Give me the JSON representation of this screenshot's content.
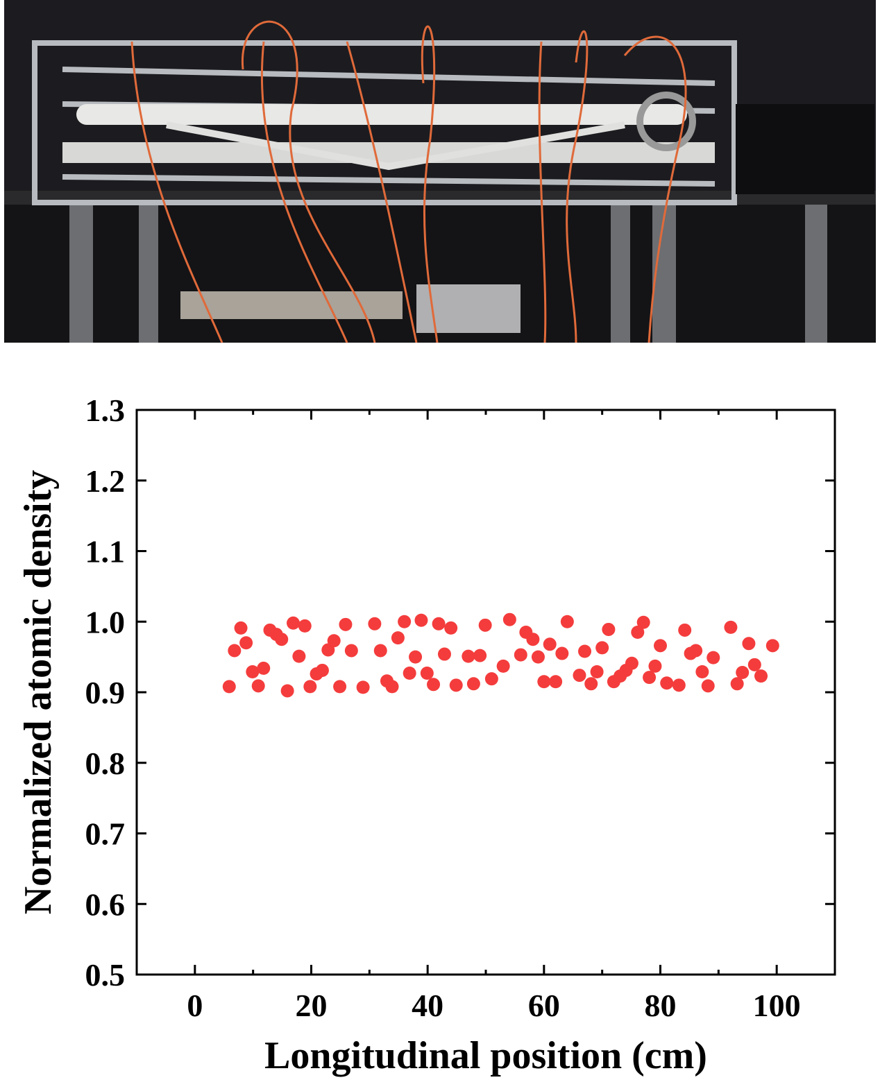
{
  "chart_data": {
    "type": "scatter",
    "x_label": "Longitudinal position (cm)",
    "y_label": "Normalized atomic density",
    "color": "#f43c3c",
    "xlim": [
      -10,
      110
    ],
    "ylim": [
      0.5,
      1.3
    ],
    "xticks": [
      0,
      20,
      40,
      60,
      80,
      100
    ],
    "yticks": [
      0.5,
      0.6,
      0.7,
      0.8,
      0.9,
      {
        "value": 1,
        "label": "1.0"
      },
      1.1,
      1.2,
      1.3
    ],
    "x": [
      5.9,
      6.8,
      7.9,
      8.8,
      9.9,
      10.9,
      11.8,
      12.9,
      14,
      14.9,
      15.9,
      16.9,
      17.9,
      18.9,
      19.8,
      20.9,
      21.9,
      22.9,
      23.9,
      24.9,
      25.9,
      26.9,
      28.9,
      30.9,
      31.9,
      33,
      33.9,
      34.9,
      36,
      36.9,
      37.9,
      38.9,
      39.9,
      41,
      41.9,
      42.9,
      44,
      44.9,
      47,
      47.9,
      49,
      49.9,
      51,
      53,
      54.1,
      56,
      56.9,
      58.1,
      59,
      60,
      61,
      62,
      63.1,
      64,
      66.1,
      67,
      68.1,
      69.1,
      70,
      71.1,
      72,
      73.1,
      74.1,
      75.1,
      76.1,
      77.1,
      78.1,
      79.1,
      80,
      81.1,
      83.2,
      84.2,
      85.2,
      86.1,
      87.2,
      88.2,
      89.1,
      92.1,
      93.2,
      94.1,
      95.2,
      96.2,
      97.3,
      99.3
    ],
    "values": [
      0.908,
      0.959,
      0.991,
      0.97,
      0.929,
      0.909,
      0.934,
      0.988,
      0.982,
      0.975,
      0.902,
      0.998,
      0.951,
      0.994,
      0.908,
      0.926,
      0.931,
      0.96,
      0.973,
      0.908,
      0.996,
      0.959,
      0.907,
      0.997,
      0.959,
      0.916,
      0.908,
      0.977,
      1.0,
      0.927,
      0.95,
      1.002,
      0.927,
      0.911,
      0.997,
      0.954,
      0.991,
      0.91,
      0.951,
      0.912,
      0.952,
      0.995,
      0.919,
      0.937,
      1.003,
      0.953,
      0.985,
      0.975,
      0.95,
      0.915,
      0.968,
      0.915,
      0.955,
      1.0,
      0.924,
      0.958,
      0.912,
      0.929,
      0.963,
      0.989,
      0.915,
      0.923,
      0.931,
      0.941,
      0.985,
      0.999,
      0.921,
      0.937,
      0.966,
      0.913,
      0.91,
      0.988,
      0.955,
      0.959,
      0.929,
      0.909,
      0.949,
      0.992,
      0.912,
      0.928,
      0.969,
      0.939,
      0.923,
      0.966
    ]
  }
}
